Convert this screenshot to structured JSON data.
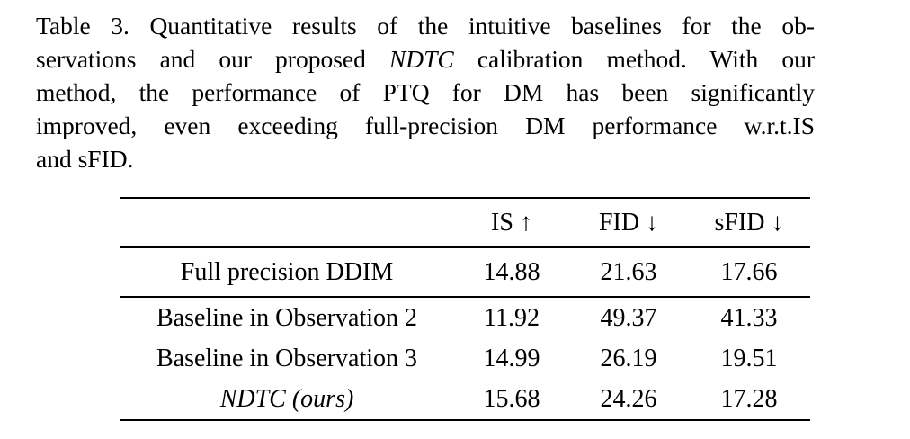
{
  "caption": {
    "line1": "Table 3. Quantitative results of the intuitive baselines for the ob-",
    "line2_before": "servations and our proposed ",
    "line2_italic": "NDTC",
    "line2_after": " calibration method. With our",
    "line3": "method, the performance of PTQ for DM has been significantly",
    "line4": "improved, even exceeding full-precision DM performance w.r.t.IS",
    "line5": "and sFID."
  },
  "table": {
    "headers": {
      "metric1": "IS ↑",
      "metric2": "FID ↓",
      "metric3": "sFID ↓"
    },
    "rows": [
      {
        "label": "Full precision DDIM",
        "is": "14.88",
        "fid": "21.63",
        "sfid": "17.66"
      },
      {
        "label": "Baseline in Observation 2",
        "is": "11.92",
        "fid": "49.37",
        "sfid": "41.33"
      },
      {
        "label": "Baseline in Observation 3",
        "is": "14.99",
        "fid": "26.19",
        "sfid": "19.51"
      },
      {
        "label": "NDTC (ours)",
        "is": "15.68",
        "fid": "24.26",
        "sfid": "17.28"
      }
    ]
  }
}
